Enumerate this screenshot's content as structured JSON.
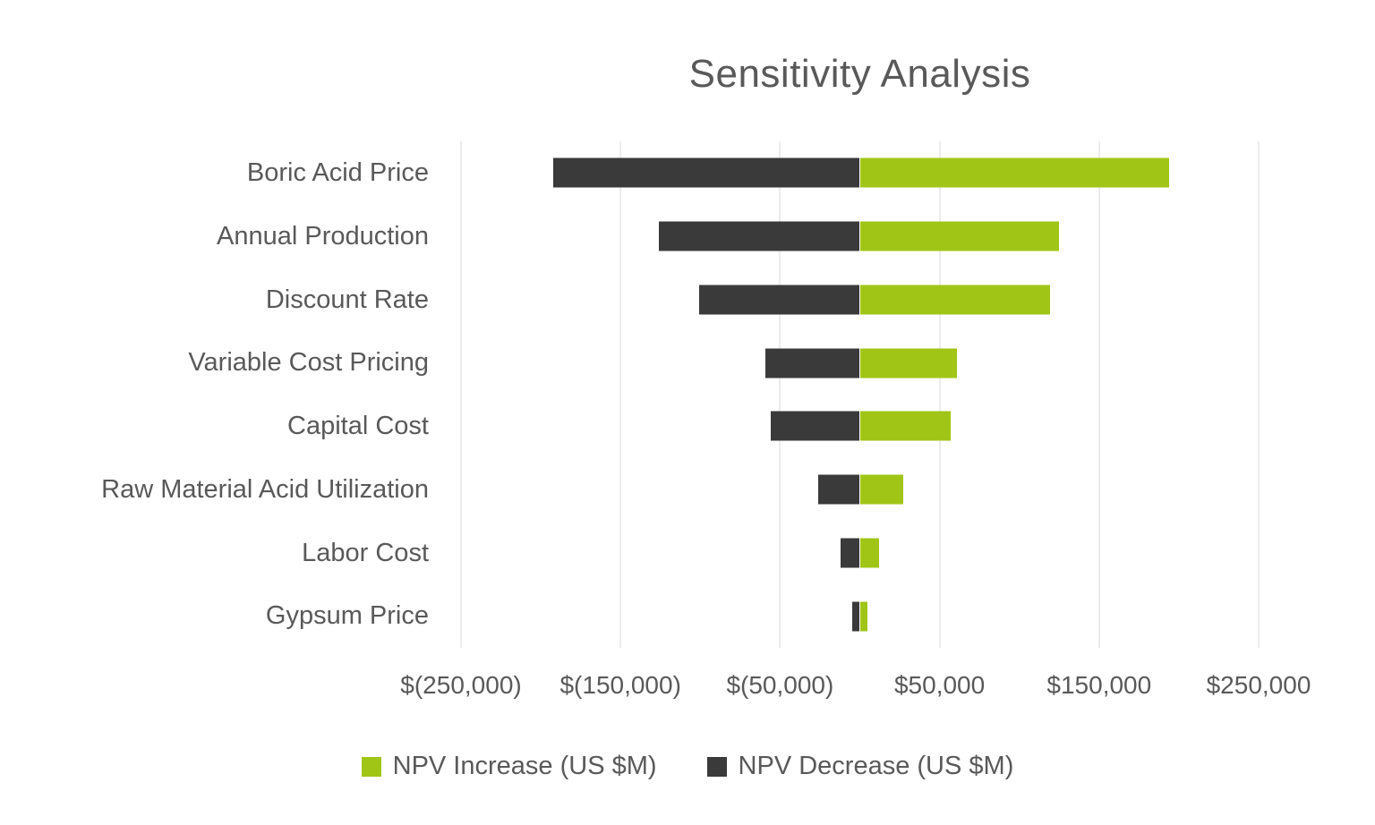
{
  "chart_data": {
    "type": "bar",
    "subtype": "tornado",
    "orientation": "horizontal",
    "title": "Sensitivity Analysis",
    "categories": [
      "Boric Acid Price",
      "Annual Production",
      "Discount Rate",
      "Variable Cost Pricing",
      "Capital Cost",
      "Raw Material Acid Utilization",
      "Labor Cost",
      "Gypsum Price"
    ],
    "series": [
      {
        "name": "NPV Increase (US $M)",
        "color": "#a1c517",
        "values": [
          194000,
          125000,
          119000,
          61000,
          57000,
          27000,
          12000,
          5000
        ]
      },
      {
        "name": "NPV Decrease (US $M)",
        "color": "#3a3a3a",
        "values": [
          -192000,
          -126000,
          -101000,
          -59000,
          -56000,
          -26000,
          -12000,
          -5000
        ]
      }
    ],
    "xlim": [
      -250000,
      250000
    ],
    "x_ticks": [
      -250000,
      -150000,
      -50000,
      50000,
      150000,
      250000
    ],
    "x_tick_labels": [
      "$(250,000)",
      "$(150,000)",
      "$(50,000)",
      "$50,000",
      "$150,000",
      "$250,000"
    ],
    "grid": true,
    "legend_position": "bottom",
    "colors": {
      "increase": "#a1c517",
      "decrease": "#3a3a3a",
      "text": "#595959",
      "gridline": "#d9d9d9",
      "background": "#ffffff"
    }
  }
}
